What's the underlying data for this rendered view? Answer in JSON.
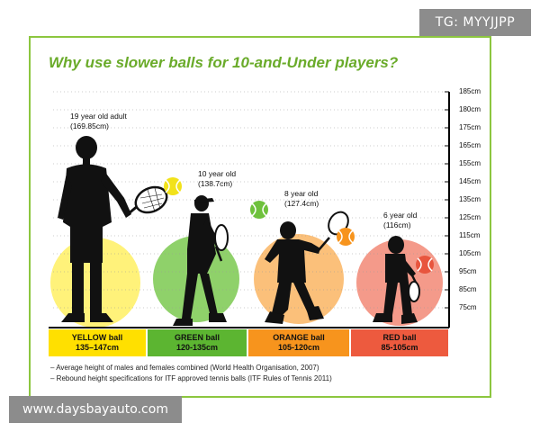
{
  "watermarks": {
    "top": "TG: MYYJJPP",
    "bottom": "www.daysbayauto.com"
  },
  "title": "Why use slower balls for 10-and-Under players?",
  "players": [
    {
      "age": "19 year old adult",
      "height": "(169.85cm)"
    },
    {
      "age": "10 year old",
      "height": "(138.7cm)"
    },
    {
      "age": "8 year old",
      "height": "(127.4cm)"
    },
    {
      "age": "6 year old",
      "height": "(116cm)"
    }
  ],
  "balls": [
    {
      "name": "YELLOW ball",
      "range": "135–147cm",
      "band_color": "#ffe000",
      "circle_color": "#fff27a"
    },
    {
      "name": "GREEN ball",
      "range": "120-135cm",
      "band_color": "#5cb531",
      "circle_color": "#8fd16a"
    },
    {
      "name": "ORANGE ball",
      "range": "105-120cm",
      "band_color": "#f7941d",
      "circle_color": "#fbc07a"
    },
    {
      "name": "RED ball",
      "range": "85-105cm",
      "band_color": "#ed5a3e",
      "circle_color": "#f49a8a"
    }
  ],
  "scale_labels": [
    "185cm",
    "180cm",
    "175cm",
    "165cm",
    "155cm",
    "145cm",
    "135cm",
    "125cm",
    "115cm",
    "105cm",
    "95cm",
    "85cm",
    "75cm"
  ],
  "notes": [
    "– Average height of males and females combined (World Health Organisation, 2007)",
    "– Rebound height specifications for ITF approved tennis balls (ITF Rules of Tennis 2011)"
  ]
}
